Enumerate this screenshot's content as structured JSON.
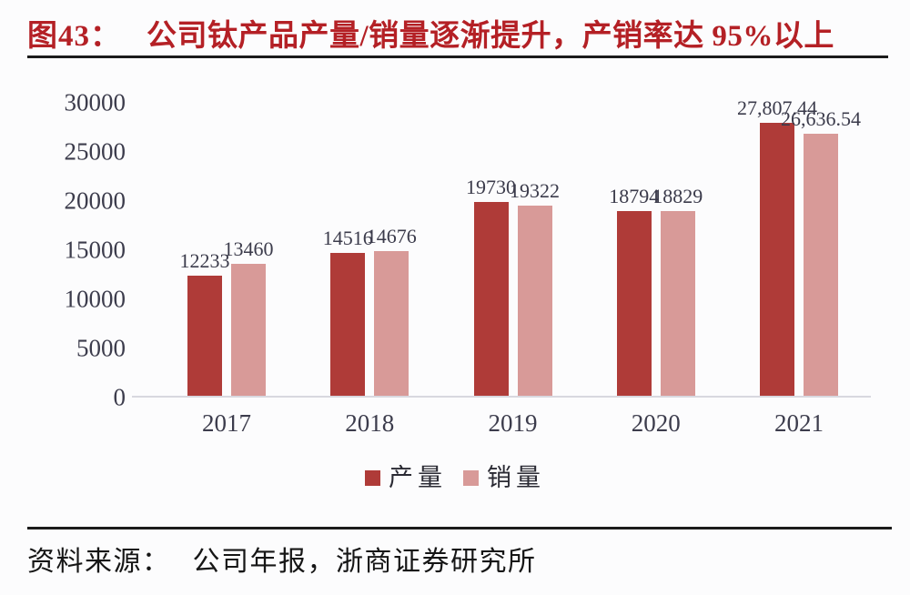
{
  "title": {
    "prefix": "图43：",
    "text": "公司钛产品产量/销量逐渐提升，产销率达 95%以上"
  },
  "source": {
    "label": "资料来源：",
    "text": "公司年报，浙商证券研究所"
  },
  "colors": {
    "title_red": "#b42025",
    "production_bar": "#af3b38",
    "sales_bar": "#d89a98",
    "axis_line": "#d8d8df",
    "tick_text": "#3c3c4c",
    "divider": "#1b1b1b"
  },
  "chart_data": {
    "type": "bar",
    "title": "公司钛产品产量/销量逐渐提升，产销率达 95%以上",
    "categories": [
      "2017",
      "2018",
      "2019",
      "2020",
      "2021"
    ],
    "series": [
      {
        "key": "production",
        "name": "产量",
        "color": "#af3b38",
        "values": [
          12233,
          14516,
          19730,
          18794,
          27807.44
        ],
        "labels": [
          "12233",
          "14516",
          "19730",
          "18794",
          "27,807.44"
        ]
      },
      {
        "key": "sales",
        "name": "销量",
        "color": "#d89a98",
        "values": [
          13460,
          14676,
          19322,
          18829,
          26636.54
        ],
        "labels": [
          "13460",
          "14676",
          "19322",
          "18829",
          "26,636.54"
        ]
      }
    ],
    "xlabel": "",
    "ylabel": "",
    "ylim": [
      0,
      30000
    ],
    "yticks": [
      0,
      5000,
      10000,
      15000,
      20000,
      25000,
      30000
    ],
    "grid": false,
    "legend_position": "bottom"
  }
}
